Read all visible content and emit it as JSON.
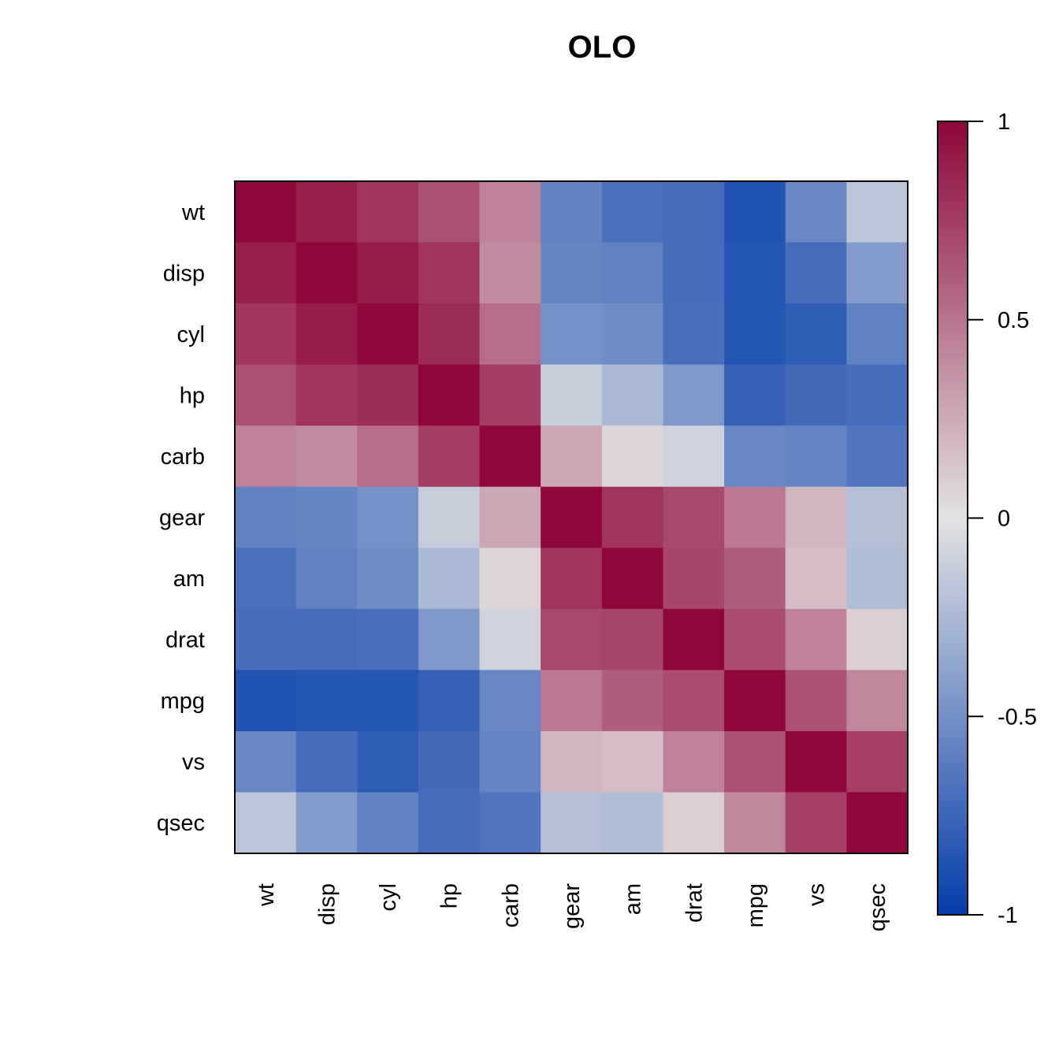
{
  "chart_data": {
    "type": "heatmap",
    "title": "OLO",
    "variables": [
      "wt",
      "disp",
      "cyl",
      "hp",
      "carb",
      "gear",
      "am",
      "drat",
      "mpg",
      "vs",
      "qsec"
    ],
    "values": [
      [
        1.0,
        0.89,
        0.78,
        0.66,
        0.43,
        -0.58,
        -0.69,
        -0.71,
        -0.87,
        -0.55,
        -0.17
      ],
      [
        0.89,
        1.0,
        0.9,
        0.79,
        0.39,
        -0.56,
        -0.59,
        -0.71,
        -0.85,
        -0.71,
        -0.43
      ],
      [
        0.78,
        0.9,
        1.0,
        0.83,
        0.53,
        -0.49,
        -0.52,
        -0.7,
        -0.85,
        -0.81,
        -0.59
      ],
      [
        0.66,
        0.79,
        0.83,
        1.0,
        0.75,
        -0.13,
        -0.24,
        -0.45,
        -0.78,
        -0.72,
        -0.71
      ],
      [
        0.43,
        0.39,
        0.53,
        0.75,
        1.0,
        0.27,
        0.06,
        -0.09,
        -0.55,
        -0.57,
        -0.66
      ],
      [
        -0.58,
        -0.56,
        -0.49,
        -0.13,
        0.27,
        1.0,
        0.79,
        0.7,
        0.48,
        0.21,
        -0.21
      ],
      [
        -0.69,
        -0.59,
        -0.52,
        -0.24,
        0.06,
        0.79,
        1.0,
        0.71,
        0.6,
        0.17,
        -0.23
      ],
      [
        -0.71,
        -0.71,
        -0.7,
        -0.45,
        -0.09,
        0.7,
        0.71,
        1.0,
        0.68,
        0.44,
        0.09
      ],
      [
        -0.87,
        -0.85,
        -0.85,
        -0.78,
        -0.55,
        0.48,
        0.6,
        0.68,
        1.0,
        0.66,
        0.42
      ],
      [
        -0.55,
        -0.71,
        -0.81,
        -0.72,
        -0.57,
        0.21,
        0.17,
        0.44,
        0.66,
        1.0,
        0.74
      ],
      [
        -0.17,
        -0.43,
        -0.59,
        -0.71,
        -0.66,
        -0.21,
        -0.23,
        0.09,
        0.42,
        0.74,
        1.0
      ]
    ],
    "color_scale": {
      "min": -1,
      "max": 1,
      "low_color": "#053dab",
      "mid_color": "#e2e2e2",
      "high_color": "#8e063b",
      "ticks": [
        1,
        0.5,
        0,
        -0.5,
        -1
      ],
      "tick_labels": [
        "1",
        "0.5",
        "0",
        "-0.5",
        "-1"
      ]
    },
    "legend_placement": "right",
    "grid": false
  }
}
